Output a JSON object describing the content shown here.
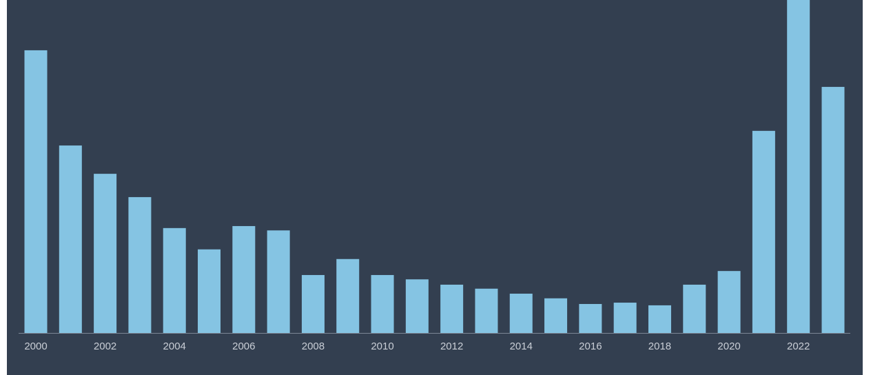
{
  "chart_data": {
    "type": "bar",
    "categories": [
      "2000",
      null,
      "2002",
      null,
      "2004",
      null,
      "2006",
      null,
      "2008",
      null,
      "2010",
      null,
      "2012",
      null,
      "2014",
      null,
      "2016",
      null,
      "2018",
      null,
      "2020",
      null,
      "2022",
      null
    ],
    "values": [
      84.9,
      56.3,
      47.8,
      40.8,
      31.5,
      25.1,
      32.1,
      30.8,
      17.4,
      22.2,
      17.4,
      16.1,
      14.5,
      13.3,
      11.8,
      10.4,
      8.7,
      9.1,
      8.3,
      14.5,
      18.6,
      60.7,
      100,
      73.9
    ],
    "color": "#85c4e3",
    "ylim": [
      0,
      100
    ]
  }
}
